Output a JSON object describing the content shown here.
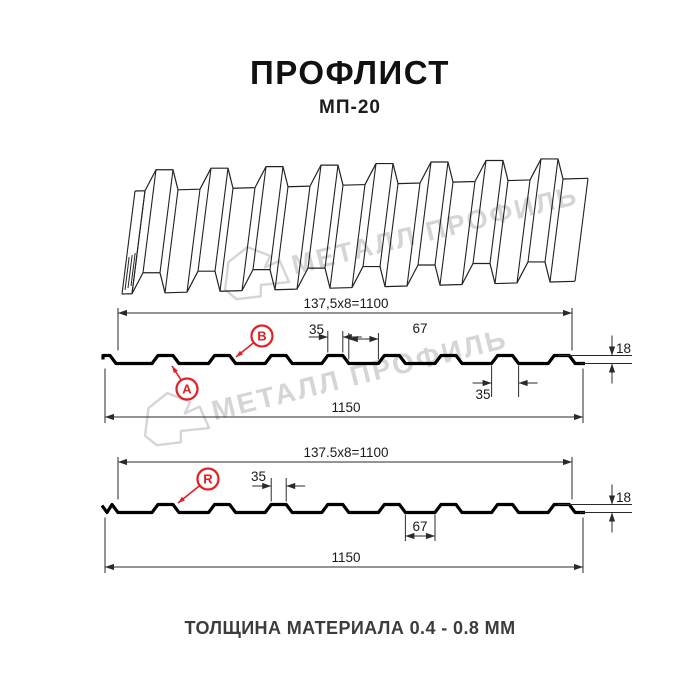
{
  "page": {
    "title": "ПРОФЛИСТ",
    "subtitle": "МП-20",
    "footer": "ТОЛЩИНА МАТЕРИАЛА 0.4 - 0.8 ММ"
  },
  "watermark": {
    "text": "МЕТАЛЛ ПРОФИЛЬ"
  },
  "colors": {
    "accent_red": "#e31e24",
    "line": "#2a2a2a",
    "profile": "#000000",
    "watermark": "#d5d5d5"
  },
  "section_a": {
    "span": "137,5x8=1100",
    "total_width": "1150",
    "rib_top_width": "35",
    "valley_width": "67",
    "rib_base_width": "35",
    "height": "18",
    "label_top": "B",
    "label_bottom": "A"
  },
  "section_r": {
    "span": "137.5x8=1100",
    "total_width": "1150",
    "rib_top_width": "35",
    "valley_width": "67",
    "height": "18",
    "label": "R"
  }
}
